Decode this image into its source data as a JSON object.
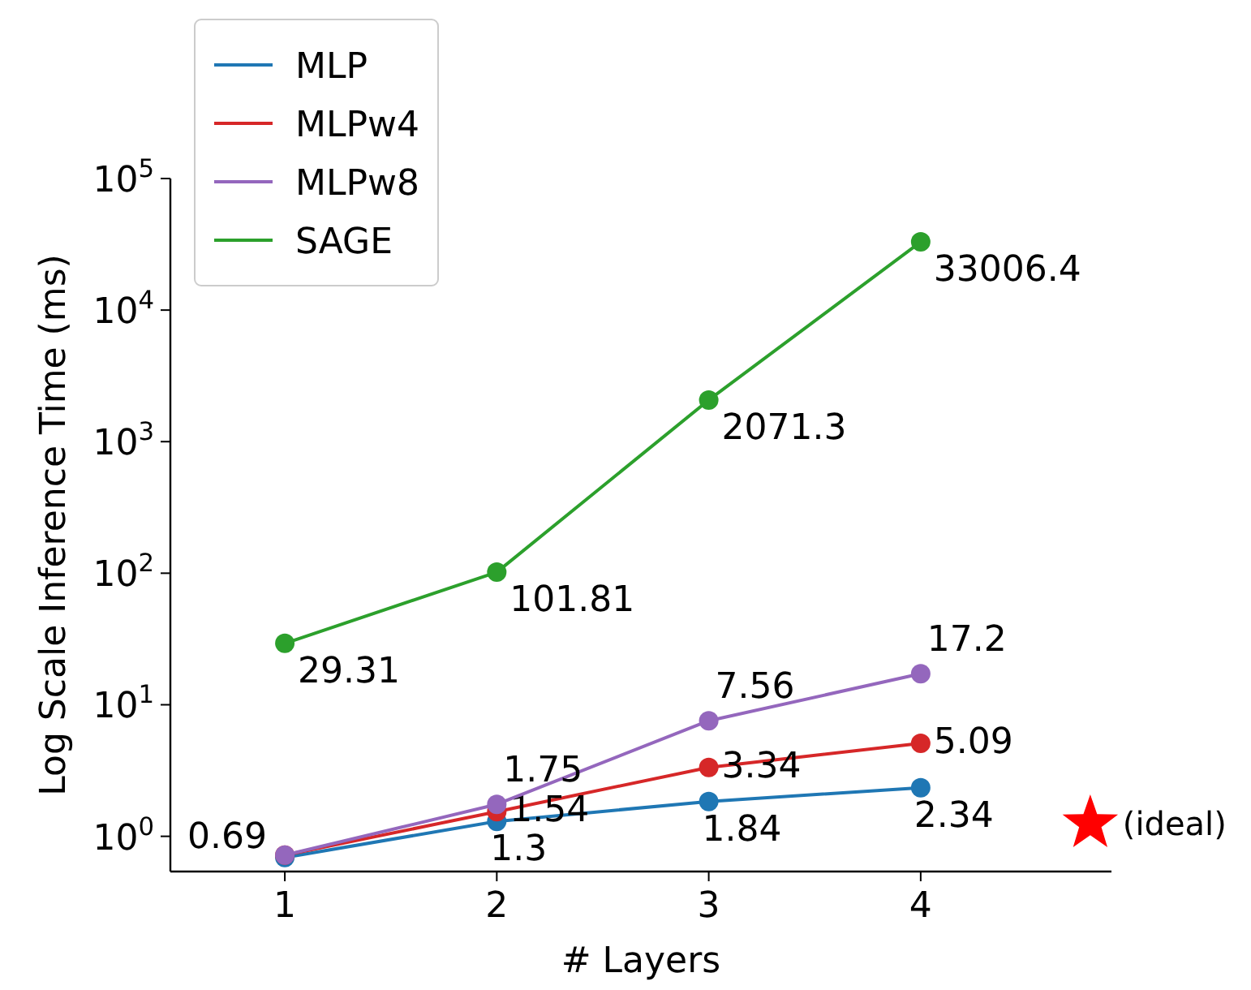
{
  "chart_data": {
    "type": "line",
    "xlabel": "# Layers",
    "ylabel": "Log Scale Inference Time (ms)",
    "x": [
      1,
      2,
      3,
      4
    ],
    "xlim": [
      0.46,
      4.9
    ],
    "xticks": [
      1,
      2,
      3,
      4
    ],
    "ylim": [
      0.54,
      100000
    ],
    "log": true,
    "yticks": [
      {
        "value": 1,
        "label": "10$^{0}$"
      },
      {
        "value": 10,
        "label": "10$^{1}$"
      },
      {
        "value": 100,
        "label": "10$^{2}$"
      },
      {
        "value": 1000,
        "label": "10$^{3}$"
      },
      {
        "value": 10000,
        "label": "10$^{4}$"
      },
      {
        "value": 100000,
        "label": "10$^{5}$"
      }
    ],
    "marker": "circle",
    "legend": "top left",
    "grid": false,
    "series": [
      {
        "name": "MLP",
        "color": "#1f77b4",
        "values": [
          0.69,
          1.3,
          1.84,
          2.34
        ],
        "value_labels": [
          "0.69",
          "1.3",
          "1.84",
          "2.34"
        ]
      },
      {
        "name": "MLPw4",
        "color": "#d62728",
        "values": [
          0.72,
          1.54,
          3.34,
          5.09
        ],
        "value_labels": [
          null,
          "1.54",
          "3.34",
          "5.09"
        ]
      },
      {
        "name": "MLPw8",
        "color": "#9467bd",
        "values": [
          0.72,
          1.75,
          7.56,
          17.2
        ],
        "value_labels": [
          null,
          "1.75",
          "7.56",
          "17.2"
        ]
      },
      {
        "name": "SAGE",
        "color": "#2ca02c",
        "values": [
          29.31,
          101.81,
          2071.3,
          33006.4
        ],
        "value_labels": [
          "29.31",
          "101.81",
          "2071.3",
          "33006.4"
        ]
      },
      {
        "type": "scatter",
        "marker": "star",
        "color": "#ff0000",
        "x": [
          4.8
        ],
        "values": [
          1.25
        ]
      }
    ],
    "annotations": [
      {
        "text": "(ideal)",
        "x": 4.8,
        "y": 1.25
      }
    ]
  }
}
